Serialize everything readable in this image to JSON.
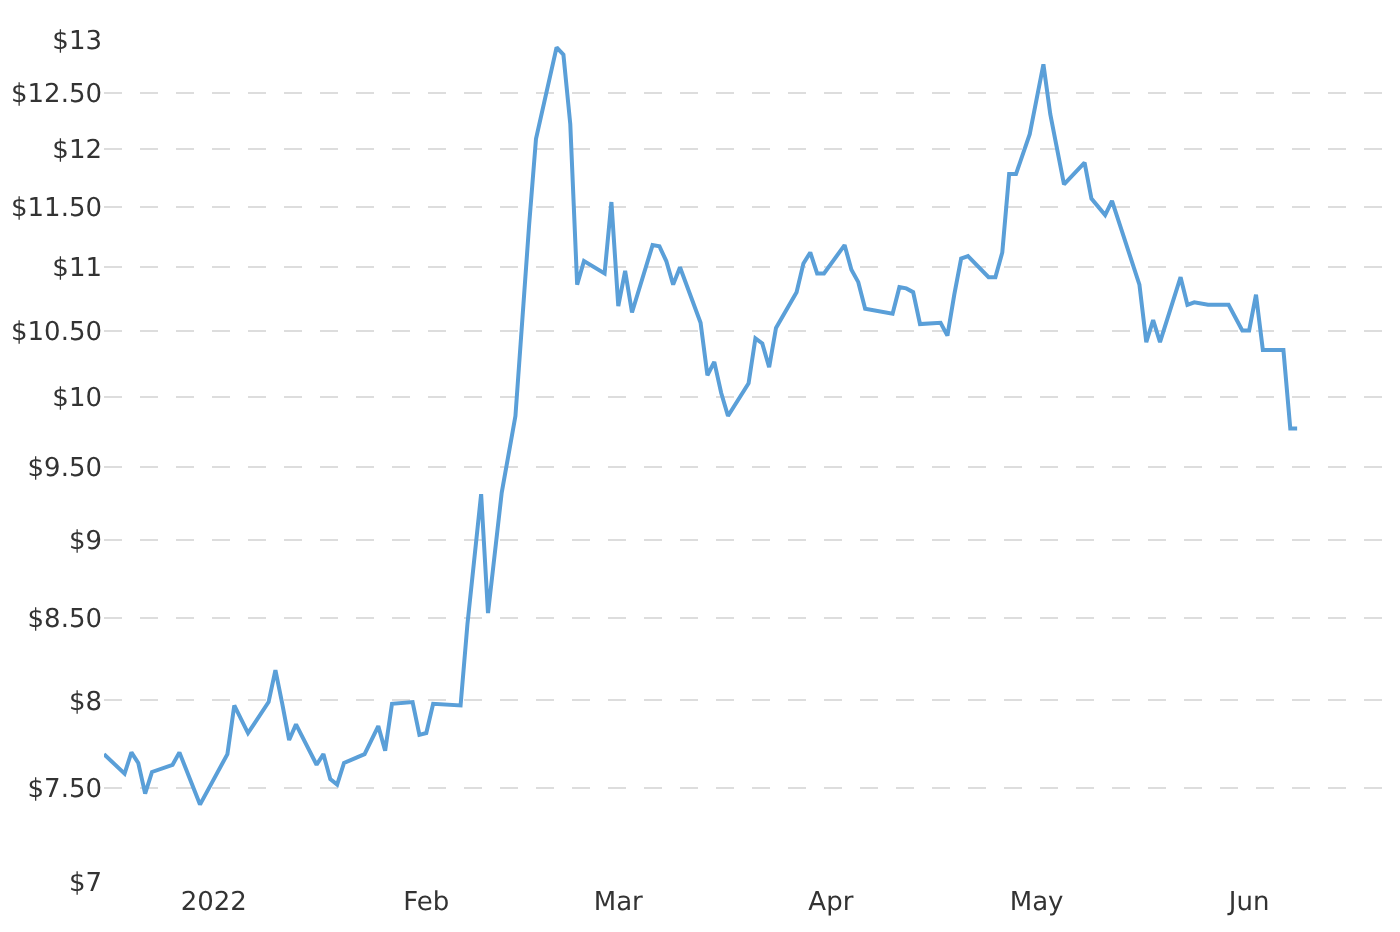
{
  "chart_data": {
    "type": "line",
    "x": [
      "2021-12-16",
      "2021-12-19",
      "2021-12-20",
      "2021-12-21",
      "2021-12-22",
      "2021-12-23",
      "2021-12-26",
      "2021-12-27",
      "2021-12-30",
      "2022-01-03",
      "2022-01-04",
      "2022-01-06",
      "2022-01-09",
      "2022-01-10",
      "2022-01-11",
      "2022-01-12",
      "2022-01-13",
      "2022-01-16",
      "2022-01-17",
      "2022-01-18",
      "2022-01-19",
      "2022-01-20",
      "2022-01-23",
      "2022-01-25",
      "2022-01-26",
      "2022-01-27",
      "2022-01-30",
      "2022-01-31",
      "2022-02-01",
      "2022-02-02",
      "2022-02-06",
      "2022-02-07",
      "2022-02-09",
      "2022-02-10",
      "2022-02-12",
      "2022-02-14",
      "2022-02-16",
      "2022-02-17",
      "2022-02-20",
      "2022-02-21",
      "2022-02-22",
      "2022-02-23",
      "2022-02-24",
      "2022-02-27",
      "2022-02-28",
      "2022-03-01",
      "2022-03-02",
      "2022-03-03",
      "2022-03-06",
      "2022-03-07",
      "2022-03-08",
      "2022-03-09",
      "2022-03-10",
      "2022-03-13",
      "2022-03-14",
      "2022-03-15",
      "2022-03-16",
      "2022-03-17",
      "2022-03-20",
      "2022-03-21",
      "2022-03-22",
      "2022-03-23",
      "2022-03-24",
      "2022-03-27",
      "2022-03-28",
      "2022-03-29",
      "2022-03-30",
      "2022-03-31",
      "2022-04-03",
      "2022-04-04",
      "2022-04-05",
      "2022-04-06",
      "2022-04-10",
      "2022-04-11",
      "2022-04-12",
      "2022-04-13",
      "2022-04-14",
      "2022-04-17",
      "2022-04-18",
      "2022-04-19",
      "2022-04-20",
      "2022-04-21",
      "2022-04-24",
      "2022-04-25",
      "2022-04-26",
      "2022-04-27",
      "2022-04-28",
      "2022-04-30",
      "2022-05-02",
      "2022-05-03",
      "2022-05-05",
      "2022-05-08",
      "2022-05-09",
      "2022-05-11",
      "2022-05-12",
      "2022-05-16",
      "2022-05-17",
      "2022-05-18",
      "2022-05-19",
      "2022-05-22",
      "2022-05-23",
      "2022-05-24",
      "2022-05-26",
      "2022-05-29",
      "2022-05-31",
      "2022-06-01",
      "2022-06-02",
      "2022-06-03",
      "2022-06-06",
      "2022-06-07",
      "2022-06-08"
    ],
    "series": [
      {
        "color": "#5a9fd8",
        "values": [
          7.69,
          7.58,
          7.7,
          7.64,
          7.47,
          7.59,
          7.63,
          7.7,
          7.41,
          7.69,
          7.97,
          7.81,
          7.99,
          8.18,
          7.98,
          7.77,
          7.86,
          7.63,
          7.69,
          7.55,
          7.52,
          7.64,
          7.69,
          7.85,
          7.71,
          7.98,
          7.99,
          7.8,
          7.81,
          7.98,
          7.97,
          8.46,
          9.31,
          8.53,
          9.32,
          9.86,
          11.35,
          12.09,
          12.93,
          12.86,
          12.22,
          10.86,
          11.05,
          10.95,
          11.54,
          10.69,
          10.97,
          10.64,
          11.18,
          11.17,
          11.05,
          10.86,
          11.0,
          10.56,
          10.16,
          10.26,
          10.03,
          9.86,
          10.1,
          10.44,
          10.4,
          10.22,
          10.52,
          10.8,
          11.03,
          11.12,
          10.95,
          10.95,
          11.18,
          10.98,
          10.88,
          10.67,
          10.63,
          10.84,
          10.83,
          10.8,
          10.55,
          10.56,
          10.46,
          10.78,
          11.07,
          11.09,
          10.92,
          10.92,
          11.12,
          11.78,
          11.78,
          12.13,
          12.77,
          12.31,
          11.69,
          11.88,
          11.57,
          11.43,
          11.55,
          10.86,
          10.41,
          10.58,
          10.41,
          10.92,
          10.7,
          10.72,
          10.7,
          10.7,
          10.5,
          10.5,
          10.78,
          10.35,
          10.35,
          9.77,
          9.77
        ]
      }
    ],
    "xlim": [
      "2021-12-16",
      "2022-06-23"
    ],
    "xticks": [
      {
        "value": "2022-01-01",
        "label": "2022"
      },
      {
        "value": "2022-02-01",
        "label": "Feb"
      },
      {
        "value": "2022-03-01",
        "label": "Mar"
      },
      {
        "value": "2022-04-01",
        "label": "Apr"
      },
      {
        "value": "2022-05-01",
        "label": "May"
      },
      {
        "value": "2022-06-01",
        "label": "Jun"
      }
    ],
    "ylim": [
      7,
      13
    ],
    "yticks": [
      {
        "value": 7,
        "label": "$7"
      },
      {
        "value": 7.5,
        "label": "$7.50"
      },
      {
        "value": 8,
        "label": "$8"
      },
      {
        "value": 8.5,
        "label": "$8.50"
      },
      {
        "value": 9,
        "label": "$9"
      },
      {
        "value": 9.5,
        "label": "$9.50"
      },
      {
        "value": 10,
        "label": "$10"
      },
      {
        "value": 10.5,
        "label": "$10.50"
      },
      {
        "value": 11,
        "label": "$11"
      },
      {
        "value": 11.5,
        "label": "$11.50"
      },
      {
        "value": 12,
        "label": "$12"
      },
      {
        "value": 12.5,
        "label": "$12.50"
      },
      {
        "value": 13,
        "label": "$13"
      }
    ],
    "log": true,
    "grid": "y",
    "legend": false,
    "marker": "none",
    "line_style": "solid"
  }
}
